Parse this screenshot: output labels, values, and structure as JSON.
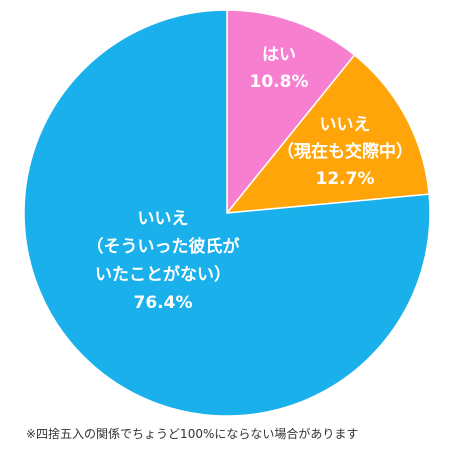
{
  "chart_data": {
    "type": "pie",
    "slices": [
      {
        "label_lines": [
          "はい",
          "10.8%"
        ],
        "value": 10.8,
        "color": "#f77fd0"
      },
      {
        "label_lines": [
          "いいえ",
          "（現在も交際中）",
          "12.7%"
        ],
        "value": 12.7,
        "color": "#ffa50a"
      },
      {
        "label_lines": [
          "いいえ",
          "（そういった彼氏が",
          "いたことがない）",
          "76.4%"
        ],
        "value": 76.4,
        "color": "#1ab0ec"
      }
    ],
    "start_angle_deg": 0,
    "direction": "clockwise"
  },
  "footnote": "※四捨五入の関係でちょうど100%にならない場合があります"
}
